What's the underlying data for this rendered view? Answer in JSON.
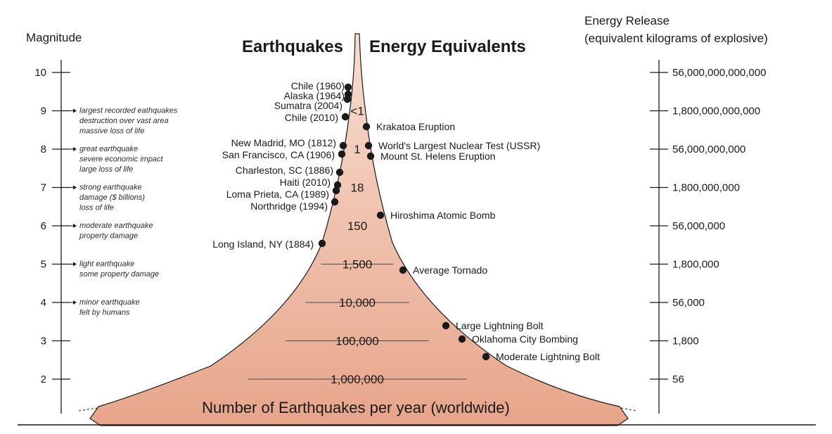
{
  "titles": {
    "left": "Earthquakes",
    "right": "Energy Equivalents",
    "magnitude_axis": "Magnitude",
    "energy_axis_line1": "Energy Release",
    "energy_axis_line2": "(equivalent kilograms of explosive)",
    "bottom": "Number of Earthquakes per year (worldwide)"
  },
  "magnitudes": [
    {
      "value": "10",
      "desc": []
    },
    {
      "value": "9",
      "desc": [
        "largest recorded eathquakes",
        "destruction over vast area",
        "massive loss of life"
      ]
    },
    {
      "value": "8",
      "desc": [
        "great earthquake",
        "severe economic impact",
        "large loss of life"
      ]
    },
    {
      "value": "7",
      "desc": [
        "strong earthquake",
        "damage ($ billions)",
        "loss of life"
      ]
    },
    {
      "value": "6",
      "desc": [
        "moderate earthquake",
        "property damage"
      ]
    },
    {
      "value": "5",
      "desc": [
        "light earthquake",
        "some property damage"
      ]
    },
    {
      "value": "4",
      "desc": [
        "minor earthquake",
        "felt by humans"
      ]
    },
    {
      "value": "3",
      "desc": []
    },
    {
      "value": "2",
      "desc": []
    }
  ],
  "energy": [
    {
      "magnitude": 10,
      "label": "56,000,000,000,000"
    },
    {
      "magnitude": 9,
      "label": "1,800,000,000,000"
    },
    {
      "magnitude": 8,
      "label": "56,000,000,000"
    },
    {
      "magnitude": 7,
      "label": "1,800,000,000"
    },
    {
      "magnitude": 6,
      "label": "56,000,000"
    },
    {
      "magnitude": 5,
      "label": "1,800,000"
    },
    {
      "magnitude": 4,
      "label": "56,000"
    },
    {
      "magnitude": 3,
      "label": "1,800"
    },
    {
      "magnitude": 2,
      "label": "56"
    }
  ],
  "counts": [
    {
      "magnitude": 9,
      "label": "<1"
    },
    {
      "magnitude": 8,
      "label": "1"
    },
    {
      "magnitude": 7,
      "label": "18"
    },
    {
      "magnitude": 6,
      "label": "150"
    },
    {
      "magnitude": 5,
      "label": "1,500"
    },
    {
      "magnitude": 4,
      "label": "10,000"
    },
    {
      "magnitude": 3,
      "label": "100,000"
    },
    {
      "magnitude": 2,
      "label": "1,000,000"
    }
  ],
  "earthquakes": [
    {
      "label": "Chile (1960)",
      "magnitude": 9.5
    },
    {
      "label": "Alaska (1964)",
      "magnitude": 9.2
    },
    {
      "label": "Sumatra (2004)",
      "magnitude": 9.1
    },
    {
      "label": "Chile (2010)",
      "magnitude": 8.8
    },
    {
      "label": "New Madrid, MO (1812)",
      "magnitude": 8.1
    },
    {
      "label": "San Francisco, CA (1906)",
      "magnitude": 7.8
    },
    {
      "label": "Charleston, SC (1886)",
      "magnitude": 7.3
    },
    {
      "label": "Haiti (2010)",
      "magnitude": 7.0
    },
    {
      "label": "Loma Prieta, CA (1989)",
      "magnitude": 6.9
    },
    {
      "label": "Northridge (1994)",
      "magnitude": 6.7
    },
    {
      "label": "Long Island, NY (1884)",
      "magnitude": 5.5
    }
  ],
  "events": [
    {
      "label": "Krakatoa Eruption",
      "magnitude": 8.6
    },
    {
      "label": "World's Largest Nuclear Test (USSR)",
      "magnitude": 8.1
    },
    {
      "label": "Mount St. Helens Eruption",
      "magnitude": 7.8
    },
    {
      "label": "Hiroshima Atomic Bomb",
      "magnitude": 6.3
    },
    {
      "label": "Average Tornado",
      "magnitude": 4.9
    },
    {
      "label": "Large Lightning Bolt",
      "magnitude": 3.3
    },
    {
      "label": "Oklahoma City Bombing",
      "magnitude": 3.0
    },
    {
      "label": "Moderate Lightning Bolt",
      "magnitude": 2.5
    }
  ],
  "colors": {
    "funnel_top": "#f7ddd0",
    "funnel_bottom": "#e7a58a",
    "ink": "#1a1a1a"
  }
}
